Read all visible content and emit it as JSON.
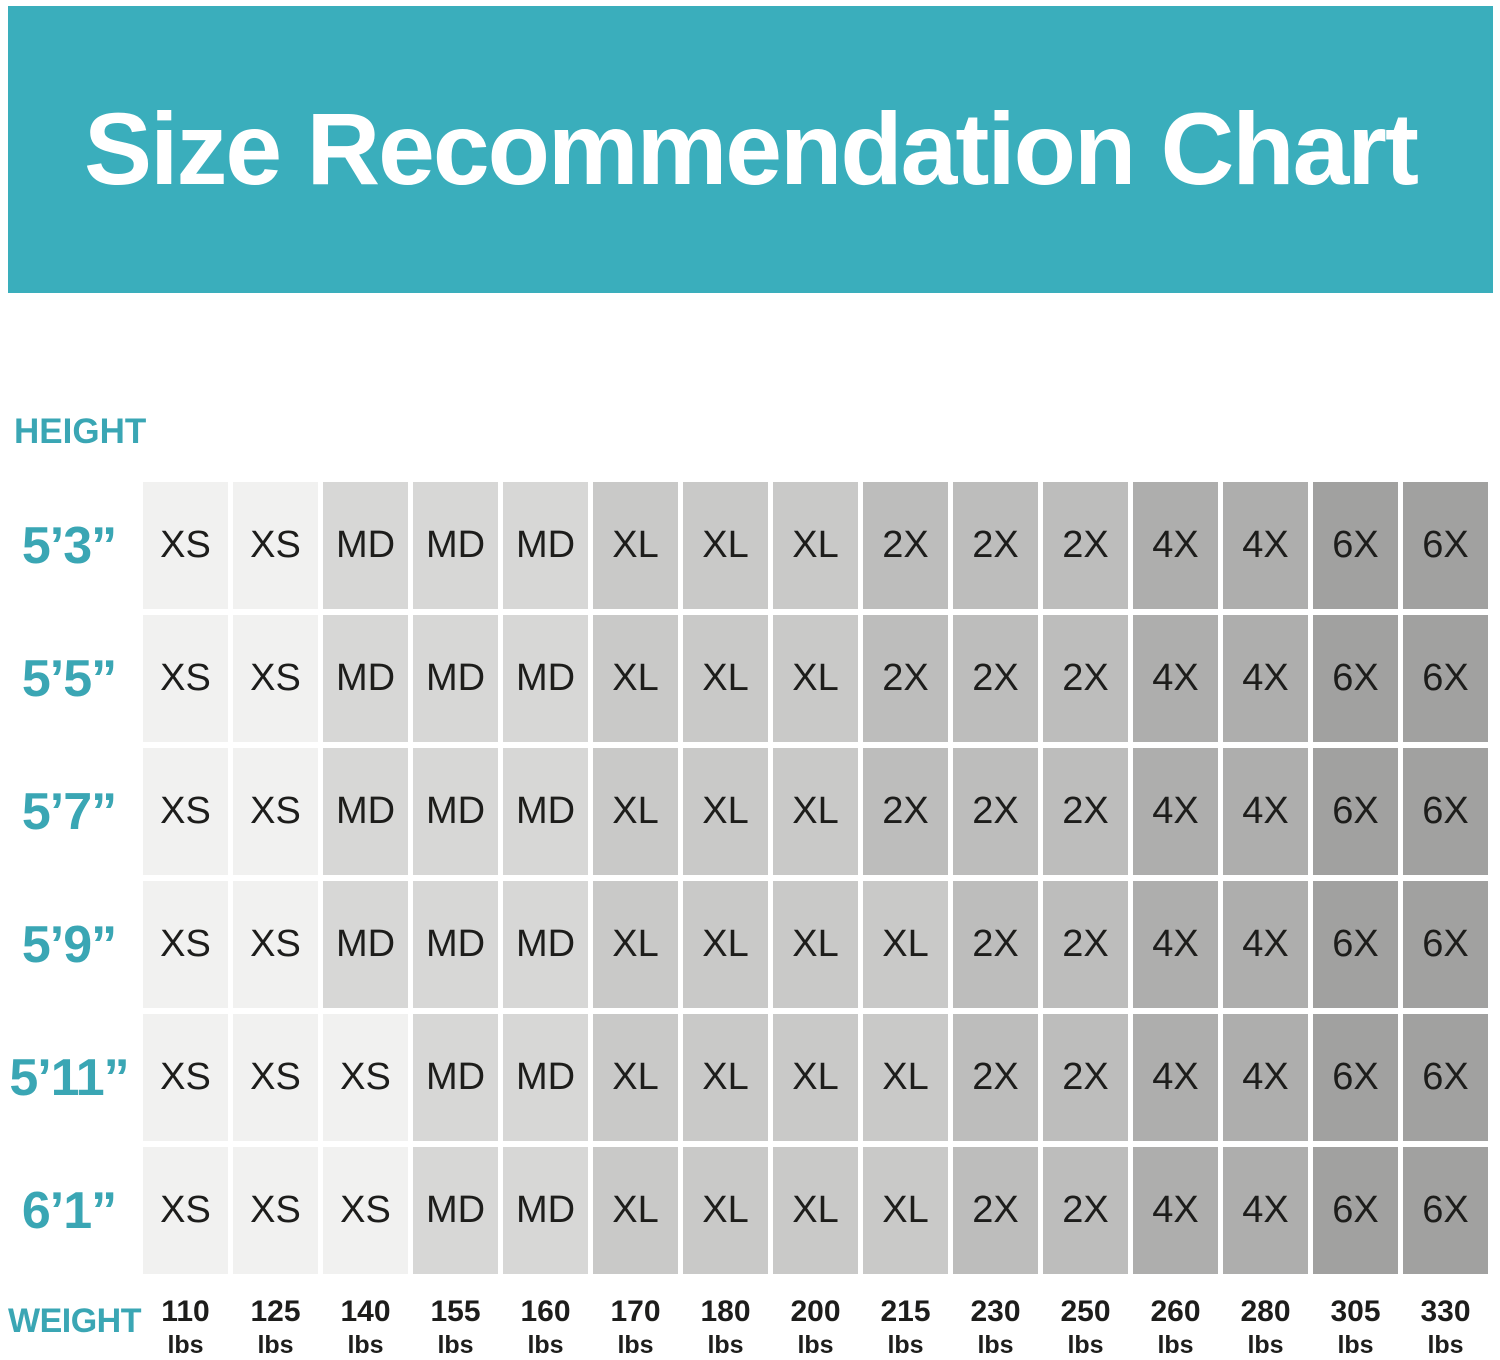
{
  "title": "Size Recommendation Chart",
  "axis": {
    "height_label": "HEIGHT",
    "weight_label": "WEIGHT"
  },
  "colors": {
    "page_bg": "#FFFFFF",
    "banner_bg": "#3AAEBC",
    "banner_text": "#FFFFFF",
    "axis_teal": "#3AA6B4",
    "cell_text": "#1D1D1B",
    "sizes": {
      "XS": "#F1F1F0",
      "MD": "#D7D7D6",
      "XL": "#C9C9C8",
      "2X": "#BDBDBC",
      "4X": "#AEAEAD",
      "6X": "#A1A1A0"
    }
  },
  "weights": [
    {
      "value": "110",
      "unit": "lbs"
    },
    {
      "value": "125",
      "unit": "lbs"
    },
    {
      "value": "140",
      "unit": "lbs"
    },
    {
      "value": "155",
      "unit": "lbs"
    },
    {
      "value": "160",
      "unit": "lbs"
    },
    {
      "value": "170",
      "unit": "lbs"
    },
    {
      "value": "180",
      "unit": "lbs"
    },
    {
      "value": "200",
      "unit": "lbs"
    },
    {
      "value": "215",
      "unit": "lbs"
    },
    {
      "value": "230",
      "unit": "lbs"
    },
    {
      "value": "250",
      "unit": "lbs"
    },
    {
      "value": "260",
      "unit": "lbs"
    },
    {
      "value": "280",
      "unit": "lbs"
    },
    {
      "value": "305",
      "unit": "lbs"
    },
    {
      "value": "330",
      "unit": "lbs"
    }
  ],
  "chart_data": {
    "type": "heatmap",
    "title": "Size Recommendation Chart",
    "xlabel": "WEIGHT",
    "ylabel": "HEIGHT",
    "x_categories": [
      "110 lbs",
      "125 lbs",
      "140 lbs",
      "155 lbs",
      "160 lbs",
      "170 lbs",
      "180 lbs",
      "200 lbs",
      "215 lbs",
      "230 lbs",
      "250 lbs",
      "260 lbs",
      "280 lbs",
      "305 lbs",
      "330 lbs"
    ],
    "y_categories": [
      "5’3”",
      "5’5”",
      "5’7”",
      "5’9”",
      "5’11”",
      "6’1”"
    ],
    "rows": [
      {
        "height": "5’3”",
        "sizes": [
          "XS",
          "XS",
          "MD",
          "MD",
          "MD",
          "XL",
          "XL",
          "XL",
          "2X",
          "2X",
          "2X",
          "4X",
          "4X",
          "6X",
          "6X"
        ]
      },
      {
        "height": "5’5”",
        "sizes": [
          "XS",
          "XS",
          "MD",
          "MD",
          "MD",
          "XL",
          "XL",
          "XL",
          "2X",
          "2X",
          "2X",
          "4X",
          "4X",
          "6X",
          "6X"
        ]
      },
      {
        "height": "5’7”",
        "sizes": [
          "XS",
          "XS",
          "MD",
          "MD",
          "MD",
          "XL",
          "XL",
          "XL",
          "2X",
          "2X",
          "2X",
          "4X",
          "4X",
          "6X",
          "6X"
        ]
      },
      {
        "height": "5’9”",
        "sizes": [
          "XS",
          "XS",
          "MD",
          "MD",
          "MD",
          "XL",
          "XL",
          "XL",
          "XL",
          "2X",
          "2X",
          "4X",
          "4X",
          "6X",
          "6X"
        ]
      },
      {
        "height": "5’11”",
        "sizes": [
          "XS",
          "XS",
          "XS",
          "MD",
          "MD",
          "XL",
          "XL",
          "XL",
          "XL",
          "2X",
          "2X",
          "4X",
          "4X",
          "6X",
          "6X"
        ]
      },
      {
        "height": "6’1”",
        "sizes": [
          "XS",
          "XS",
          "XS",
          "MD",
          "MD",
          "XL",
          "XL",
          "XL",
          "XL",
          "2X",
          "2X",
          "4X",
          "4X",
          "6X",
          "6X"
        ]
      }
    ],
    "legend_position": "none",
    "grid": false,
    "color_scale": "gray shade encodes size: XS lightest to 6X darkest"
  }
}
